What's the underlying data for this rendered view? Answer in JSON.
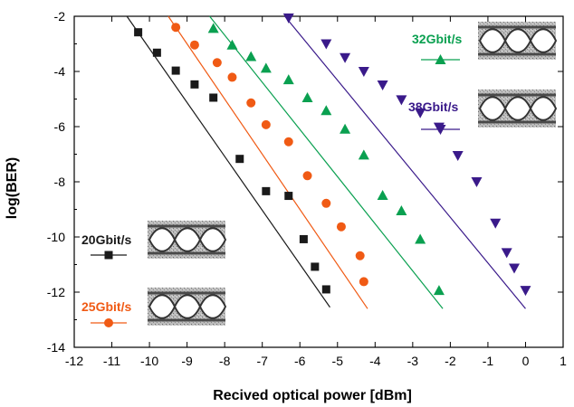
{
  "chart_data": {
    "type": "scatter",
    "title": "",
    "xlabel": "Recived optical power [dBm]",
    "ylabel": "log(BER)",
    "xlim": [
      -12,
      1
    ],
    "ylim": [
      -14,
      -2
    ],
    "x_ticks": [
      "-12",
      "-11",
      "-10",
      "-9",
      "-8",
      "-7",
      "-6",
      "-5",
      "-4",
      "-3",
      "-2",
      "-1",
      "0",
      "1"
    ],
    "y_ticks": [
      "-2",
      "-4",
      "-6",
      "-8",
      "-10",
      "-12",
      "-14"
    ],
    "grid": false,
    "series": [
      {
        "name": "20Gbit/s",
        "color": "#1a1a1a",
        "marker": "square",
        "x": [
          -10.3,
          -9.8,
          -9.3,
          -8.8,
          -8.3,
          -7.6,
          -6.9,
          -6.3,
          -5.9,
          -5.6,
          -5.3
        ],
        "y": [
          -2.58,
          -3.32,
          -3.97,
          -4.47,
          -4.95,
          -7.17,
          -8.34,
          -8.51,
          -10.08,
          -11.08,
          -11.9
        ],
        "fit": [
          [
            -10.6,
            -2.0
          ],
          [
            -5.2,
            -12.55
          ]
        ]
      },
      {
        "name": "25Gbit/s",
        "color": "#f05a14",
        "marker": "circle",
        "x": [
          -9.3,
          -8.8,
          -8.2,
          -7.8,
          -7.3,
          -6.9,
          -6.3,
          -5.8,
          -5.3,
          -4.9,
          -4.4,
          -4.3
        ],
        "y": [
          -2.4,
          -3.04,
          -3.68,
          -4.21,
          -5.14,
          -5.93,
          -6.55,
          -7.78,
          -8.78,
          -9.63,
          -10.68,
          -11.62
        ],
        "fit": [
          [
            -9.5,
            -2.0
          ],
          [
            -4.2,
            -12.6
          ]
        ]
      },
      {
        "name": "32Gbit/s",
        "color": "#0aa050",
        "marker": "triangle-up",
        "x": [
          -8.3,
          -7.8,
          -7.3,
          -6.9,
          -6.3,
          -5.8,
          -5.3,
          -4.8,
          -4.3,
          -3.8,
          -3.3,
          -2.8,
          -2.3
        ],
        "y": [
          -2.44,
          -3.04,
          -3.46,
          -3.88,
          -4.3,
          -4.95,
          -5.42,
          -6.09,
          -7.03,
          -8.49,
          -9.05,
          -10.08,
          -11.94
        ],
        "fit": [
          [
            -8.4,
            -2.0
          ],
          [
            -2.2,
            -12.6
          ]
        ]
      },
      {
        "name": "38Gbit/s",
        "color": "#3a1a8a",
        "marker": "triangle-down",
        "x": [
          -6.3,
          -5.3,
          -4.8,
          -4.3,
          -3.8,
          -3.3,
          -2.8,
          -2.3,
          -1.8,
          -1.3,
          -0.8,
          -0.5,
          -0.3,
          0.0
        ],
        "y": [
          -2.06,
          -3.0,
          -3.5,
          -4.0,
          -4.49,
          -5.03,
          -5.5,
          -6.02,
          -7.05,
          -8.0,
          -9.5,
          -10.57,
          -11.13,
          -11.94
        ],
        "fit": [
          [
            -6.4,
            -2.0
          ],
          [
            0.0,
            -12.6
          ]
        ]
      }
    ],
    "legend_placement": "inside (eye diagram insets top-right and bottom-left)"
  }
}
